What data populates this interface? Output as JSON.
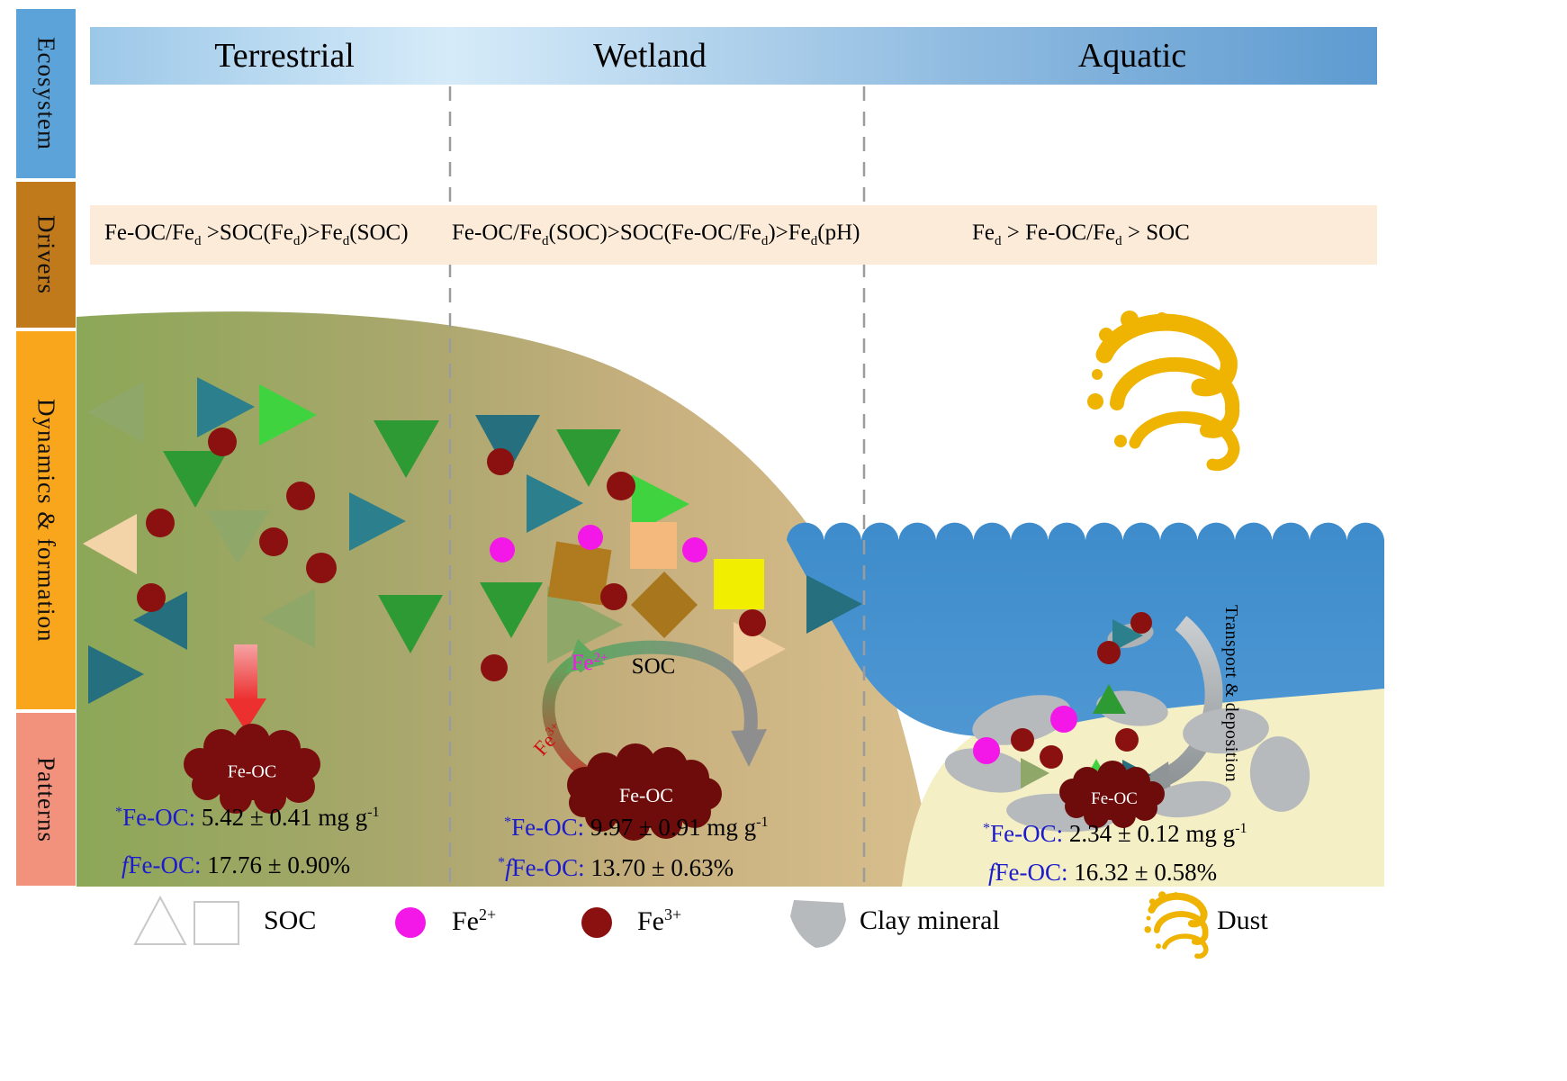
{
  "sidebar": {
    "items": [
      {
        "label": "Ecosystem",
        "color": "#5BA3D9"
      },
      {
        "label": "Drivers",
        "color": "#C0791B"
      },
      {
        "label": "Dynamics & formation",
        "color": "#F9A61C"
      },
      {
        "label": "Patterns",
        "color": "#F2917C"
      }
    ]
  },
  "header": {
    "columns": [
      {
        "label": "Terrestrial"
      },
      {
        "label": "Wetland"
      },
      {
        "label": "Aquatic"
      }
    ]
  },
  "drivers": {
    "terrestrial": [
      {
        "t": "Fe-OC/Fe"
      },
      {
        "t": "d",
        "s": "sub"
      },
      {
        "t": " >SOC(Fe"
      },
      {
        "t": "d",
        "s": "sub"
      },
      {
        "t": ")>Fe"
      },
      {
        "t": "d",
        "s": "sub"
      },
      {
        "t": "(SOC)"
      }
    ],
    "wetland": [
      {
        "t": "Fe-OC/Fe"
      },
      {
        "t": "d",
        "s": "sub"
      },
      {
        "t": "(SOC)>SOC(Fe-OC/Fe"
      },
      {
        "t": "d",
        "s": "sub"
      },
      {
        "t": ")>Fe"
      },
      {
        "t": "d",
        "s": "sub"
      },
      {
        "t": "(pH)"
      }
    ],
    "aquatic": [
      {
        "t": "Fe"
      },
      {
        "t": "d",
        "s": "sub"
      },
      {
        "t": " > Fe-OC/Fe"
      },
      {
        "t": "d",
        "s": "sub"
      },
      {
        "t": " > SOC"
      }
    ]
  },
  "scene": {
    "cycle": {
      "fe2": [
        {
          "t": "Fe",
          "s": "magenta"
        },
        {
          "t": "2+",
          "s": "sup magenta"
        }
      ],
      "soc": "SOC",
      "fe3": [
        {
          "t": "Fe",
          "s": "red"
        },
        {
          "t": "3+",
          "s": "sup red"
        }
      ]
    },
    "blob_labels": {
      "terrestrial": "Fe-OC",
      "wetland": "Fe-OC",
      "aquatic": "Fe-OC"
    },
    "transport": "Transport & deposition"
  },
  "stats": {
    "terrestrial": {
      "line1": [
        {
          "t": "*",
          "s": "sup blue"
        },
        {
          "t": "Fe-OC: ",
          "s": "blue"
        },
        {
          "t": "5.42 ± 0.41 mg g"
        },
        {
          "t": "-1",
          "s": "sup"
        }
      ],
      "line2": [
        {
          "t": "f",
          "s": "i blue"
        },
        {
          "t": "Fe-OC: ",
          "s": "blue"
        },
        {
          "t": "17.76 ± 0.90%"
        }
      ]
    },
    "wetland": {
      "line1": [
        {
          "t": "*",
          "s": "sup blue"
        },
        {
          "t": "Fe-OC: ",
          "s": "blue"
        },
        {
          "t": "9.97 ± 0.91 mg g"
        },
        {
          "t": "-1",
          "s": "sup"
        }
      ],
      "line2": [
        {
          "t": "*",
          "s": "sup blue"
        },
        {
          "t": "f",
          "s": "i blue"
        },
        {
          "t": "Fe-OC: ",
          "s": "blue"
        },
        {
          "t": "13.70 ± 0.63%"
        }
      ]
    },
    "aquatic": {
      "line1": [
        {
          "t": "*",
          "s": "sup blue"
        },
        {
          "t": "Fe-OC: ",
          "s": "blue"
        },
        {
          "t": "2.34 ± 0.12 mg g"
        },
        {
          "t": "-1",
          "s": "sup"
        }
      ],
      "line2": [
        {
          "t": "f",
          "s": "i blue"
        },
        {
          "t": "Fe-OC: ",
          "s": "blue"
        },
        {
          "t": "16.32 ± 0.58%"
        }
      ]
    }
  },
  "legend": {
    "soc": "SOC",
    "fe2": [
      {
        "t": "Fe"
      },
      {
        "t": "2+",
        "s": "sup"
      }
    ],
    "fe3": [
      {
        "t": "Fe"
      },
      {
        "t": "3+",
        "s": "sup"
      }
    ],
    "clay": "Clay mineral",
    "dust": "Dust",
    "icons": {
      "soc": "triangle-square-outline-icon",
      "fe2": "magenta-circle-icon",
      "fe3": "dark-red-circle-icon",
      "clay": "clay-blob-icon",
      "dust": "dust-swirl-icon"
    }
  },
  "colors": {
    "fe2": "#F318E8",
    "fe3": "#8B1111",
    "fe_oc_blob": "#6E0C0C",
    "clay": "#B6BABC",
    "dust": "#EFB301",
    "water": "#3E8CCB",
    "stat_blue": "#1C1CCD"
  }
}
